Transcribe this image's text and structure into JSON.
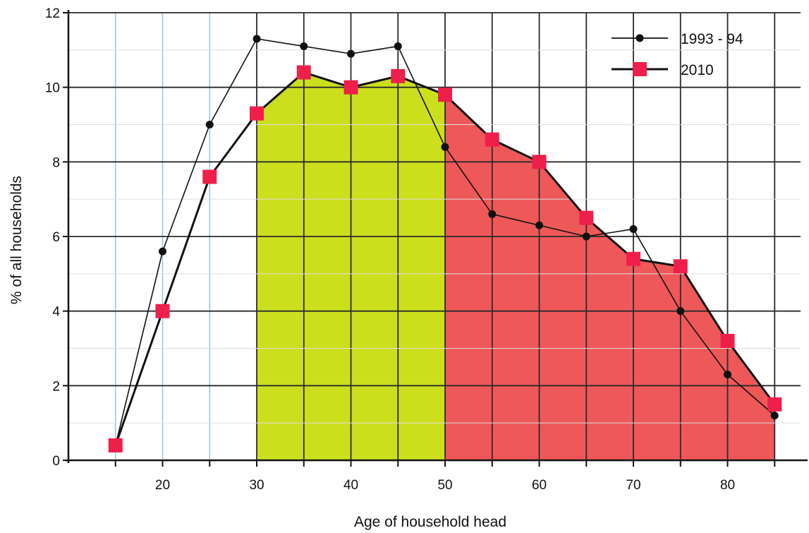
{
  "chart_data": {
    "type": "line",
    "title": "",
    "xlabel": "Age of household head",
    "ylabel": "% of all households",
    "xlim": [
      10,
      87
    ],
    "ylim": [
      0,
      12
    ],
    "x_ticks": [
      20,
      30,
      40,
      50,
      60,
      70,
      80
    ],
    "y_ticks": [
      0,
      2,
      4,
      6,
      8,
      10,
      12
    ],
    "grid": true,
    "legend_position": "top-right",
    "shaded_regions": [
      {
        "x_range": [
          30,
          50
        ],
        "under_series": "2010",
        "color": "#c8dc0a"
      },
      {
        "x_range": [
          50,
          85
        ],
        "under_series": "2010",
        "color": "#ee4a4a"
      }
    ],
    "series": [
      {
        "name": "1993 - 94",
        "marker": "circle",
        "color": "#111111",
        "points": [
          [
            15,
            0.4
          ],
          [
            20,
            5.6
          ],
          [
            25,
            9.0
          ],
          [
            30,
            11.3
          ],
          [
            35,
            11.1
          ],
          [
            40,
            10.9
          ],
          [
            45,
            11.1
          ],
          [
            50,
            8.4
          ],
          [
            55,
            6.6
          ],
          [
            60,
            6.3
          ],
          [
            65,
            6.0
          ],
          [
            70,
            6.2
          ],
          [
            75,
            4.0
          ],
          [
            80,
            2.3
          ],
          [
            85,
            1.2
          ]
        ]
      },
      {
        "name": "2010",
        "marker": "square",
        "color": "#ee1f4a",
        "points": [
          [
            15,
            0.4
          ],
          [
            20,
            4.0
          ],
          [
            25,
            7.6
          ],
          [
            30,
            9.3
          ],
          [
            35,
            10.4
          ],
          [
            40,
            10.0
          ],
          [
            45,
            10.3
          ],
          [
            50,
            9.8
          ],
          [
            55,
            8.6
          ],
          [
            60,
            8.0
          ],
          [
            65,
            6.5
          ],
          [
            70,
            5.4
          ],
          [
            75,
            5.2
          ],
          [
            80,
            3.2
          ],
          [
            85,
            1.5
          ]
        ]
      }
    ]
  }
}
